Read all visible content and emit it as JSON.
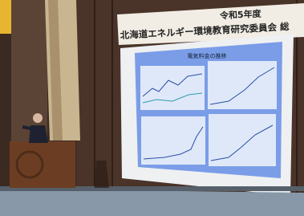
{
  "banner": {
    "line1": "令和5年度",
    "line2": "北海道エネルギー環境教育研究委員会 総"
  },
  "slide": {
    "title": "電気料金の推移"
  }
}
